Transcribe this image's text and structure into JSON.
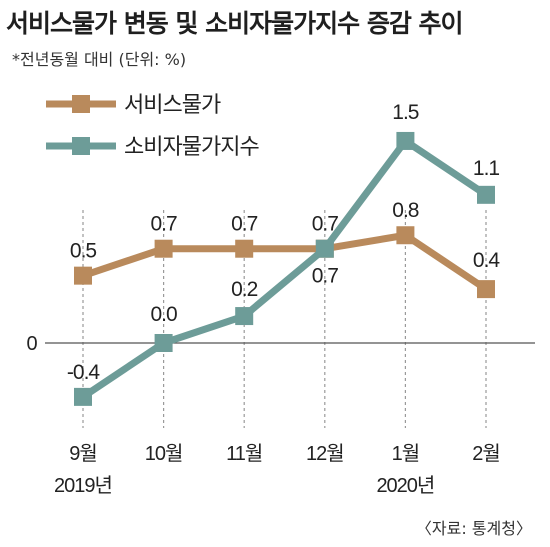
{
  "title": "서비스물가 변동 및 소비자물가지수 증감 추이",
  "subtitle": "*전년동월 대비 (단위: %)",
  "source": "〈자료: 통계청〉",
  "chart_data": {
    "type": "line",
    "categories": [
      "9월",
      "10월",
      "11월",
      "12월",
      "1월",
      "2월"
    ],
    "year_labels": [
      "2019년",
      "",
      "",
      "",
      "2020년",
      ""
    ],
    "ylim": [
      -0.6,
      1.8
    ],
    "y_ticks": [
      {
        "value": 0,
        "label": "0"
      }
    ],
    "grid": "vertical-dashed",
    "legend": "top-left",
    "series": [
      {
        "name": "서비스물가",
        "color": "#b98a5c",
        "values": [
          0.5,
          0.7,
          0.7,
          0.7,
          0.8,
          0.4
        ],
        "labels": [
          "0.5",
          "0.7",
          "0.7",
          "0.7",
          "0.8",
          "0.4"
        ]
      },
      {
        "name": "소비자물가지수",
        "color": "#6d9c98",
        "values": [
          -0.4,
          0.0,
          0.2,
          0.7,
          1.5,
          1.1
        ],
        "labels": [
          "-0.4",
          "0.0",
          "0.2",
          "0.7",
          "1.5",
          "1.1"
        ]
      }
    ]
  }
}
